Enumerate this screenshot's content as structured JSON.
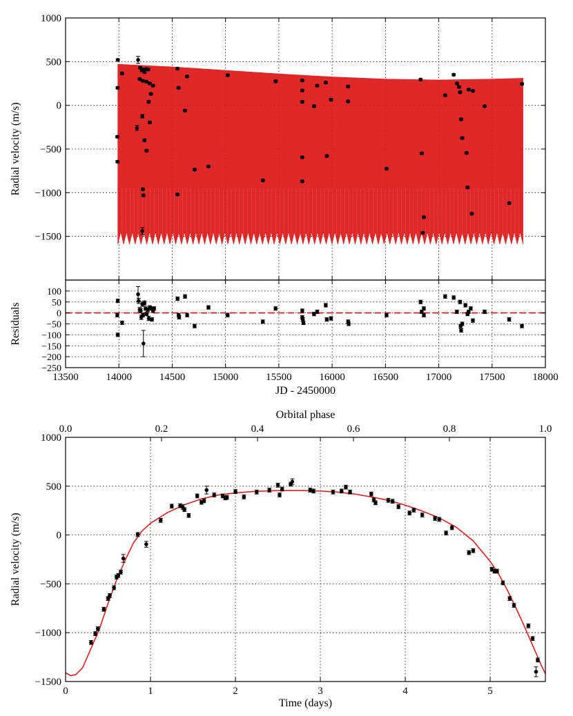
{
  "colors": {
    "model": "#dd1c1c",
    "data": "#000000",
    "zero_line": "#dd1c1c",
    "grid": "#000000"
  },
  "chart_data": [
    {
      "id": "rv_time_series",
      "type": "scatter",
      "ylabel": "Radial velocity (m/s)",
      "xlim": [
        13500,
        18000
      ],
      "ylim": [
        -2000,
        1000
      ],
      "xticks": [
        13500,
        14000,
        14500,
        15000,
        15500,
        16000,
        16500,
        17000,
        17500,
        18000
      ],
      "yticks": [
        1000,
        500,
        0,
        -500,
        -1000,
        -1500
      ],
      "ytick_labels": [
        "1000",
        "500",
        "0",
        "−500",
        "−1000",
        "−1500"
      ],
      "grid": true,
      "model": {
        "name": "orbital model envelope",
        "x_range": [
          13990,
          17790
        ],
        "upper": [
          [
            13990,
            470
          ],
          [
            14500,
            440
          ],
          [
            15000,
            400
          ],
          [
            15500,
            360
          ],
          [
            16000,
            325
          ],
          [
            16500,
            300
          ],
          [
            17000,
            290
          ],
          [
            17500,
            300
          ],
          [
            17790,
            310
          ]
        ],
        "lower_base": -1450,
        "lower_valley": -1590
      },
      "points": [
        [
          13990,
          520,
          12
        ],
        [
          13988,
          200,
          12
        ],
        [
          13985,
          -360,
          12
        ],
        [
          13987,
          -645,
          12
        ],
        [
          14030,
          365,
          12
        ],
        [
          14180,
          520,
          40
        ],
        [
          14200,
          430,
          12
        ],
        [
          14215,
          400,
          15
        ],
        [
          14225,
          280,
          12
        ],
        [
          14230,
          410,
          12
        ],
        [
          14240,
          380,
          12
        ],
        [
          14255,
          415,
          12
        ],
        [
          14260,
          270,
          12
        ],
        [
          14275,
          410,
          12
        ],
        [
          14290,
          250,
          12
        ],
        [
          14320,
          225,
          12
        ],
        [
          14300,
          130,
          12
        ],
        [
          14280,
          40,
          12
        ],
        [
          14290,
          -195,
          12
        ],
        [
          14195,
          300,
          12
        ],
        [
          14170,
          -260,
          30
        ],
        [
          14220,
          -125,
          20
        ],
        [
          14240,
          -400,
          12
        ],
        [
          14260,
          -520,
          12
        ],
        [
          14225,
          -960,
          12
        ],
        [
          14230,
          -1030,
          12
        ],
        [
          14220,
          -1440,
          40
        ],
        [
          14550,
          420,
          12
        ],
        [
          14560,
          200,
          12
        ],
        [
          14640,
          330,
          12
        ],
        [
          14620,
          -60,
          12
        ],
        [
          14710,
          -735,
          12
        ],
        [
          14550,
          -1020,
          12
        ],
        [
          14840,
          -700,
          12
        ],
        [
          15020,
          345,
          12
        ],
        [
          15350,
          -860,
          12
        ],
        [
          15470,
          275,
          12
        ],
        [
          15720,
          285,
          12
        ],
        [
          15720,
          170,
          12
        ],
        [
          15720,
          40,
          12
        ],
        [
          15720,
          -595,
          12
        ],
        [
          15720,
          -870,
          12
        ],
        [
          15830,
          -10,
          12
        ],
        [
          15860,
          225,
          12
        ],
        [
          15940,
          260,
          12
        ],
        [
          15990,
          65,
          12
        ],
        [
          15950,
          -580,
          12
        ],
        [
          16150,
          215,
          12
        ],
        [
          16150,
          45,
          12
        ],
        [
          16510,
          -725,
          12
        ],
        [
          16830,
          295,
          12
        ],
        [
          16840,
          -550,
          12
        ],
        [
          16860,
          -1280,
          12
        ],
        [
          16850,
          -1460,
          12
        ],
        [
          17060,
          115,
          12
        ],
        [
          17140,
          350,
          12
        ],
        [
          17170,
          250,
          12
        ],
        [
          17190,
          210,
          12
        ],
        [
          17200,
          150,
          12
        ],
        [
          17210,
          -160,
          12
        ],
        [
          17220,
          -375,
          12
        ],
        [
          17260,
          -545,
          12
        ],
        [
          17270,
          -940,
          12
        ],
        [
          17280,
          180,
          12
        ],
        [
          17320,
          165,
          12
        ],
        [
          17310,
          -1240,
          12
        ],
        [
          17430,
          -10,
          12
        ],
        [
          17660,
          -1120,
          12
        ],
        [
          17780,
          245,
          12
        ]
      ]
    },
    {
      "id": "residuals",
      "type": "scatter",
      "xlabel": "JD - 2450000",
      "ylabel": "Residuals",
      "xlim": [
        13500,
        18000
      ],
      "ylim": [
        -250,
        150
      ],
      "xticks": [
        13500,
        14000,
        14500,
        15000,
        15500,
        16000,
        16500,
        17000,
        17500,
        18000
      ],
      "xtick_labels": [
        "13500",
        "14000",
        "14500",
        "15000",
        "15500",
        "16000",
        "16500",
        "17000",
        "17500",
        "18000"
      ],
      "yticks": [
        100,
        50,
        0,
        -50,
        -100,
        -150,
        -200,
        -250
      ],
      "ytick_labels": [
        "100",
        "50",
        "0",
        "−50",
        "−100",
        "−150",
        "−200",
        "−250"
      ],
      "zero_line": 0,
      "points": [
        [
          13990,
          55,
          8
        ],
        [
          13985,
          -10,
          8
        ],
        [
          13990,
          -100,
          8
        ],
        [
          14030,
          -45,
          8
        ],
        [
          14180,
          85,
          35
        ],
        [
          14185,
          55,
          12
        ],
        [
          14195,
          15,
          10
        ],
        [
          14205,
          10,
          10
        ],
        [
          14210,
          -20,
          10
        ],
        [
          14220,
          40,
          10
        ],
        [
          14225,
          -10,
          8
        ],
        [
          14230,
          -140,
          60
        ],
        [
          14240,
          45,
          10
        ],
        [
          14250,
          20,
          8
        ],
        [
          14260,
          -5,
          8
        ],
        [
          14270,
          15,
          8
        ],
        [
          14280,
          -25,
          10
        ],
        [
          14290,
          25,
          8
        ],
        [
          14300,
          20,
          8
        ],
        [
          14310,
          -30,
          8
        ],
        [
          14320,
          10,
          8
        ],
        [
          14330,
          20,
          8
        ],
        [
          14550,
          65,
          8
        ],
        [
          14560,
          -10,
          8
        ],
        [
          14565,
          -20,
          8
        ],
        [
          14620,
          75,
          8
        ],
        [
          14640,
          -10,
          8
        ],
        [
          14710,
          -60,
          8
        ],
        [
          14840,
          25,
          8
        ],
        [
          15020,
          -10,
          8
        ],
        [
          15350,
          -40,
          8
        ],
        [
          15470,
          20,
          8
        ],
        [
          15720,
          10,
          8
        ],
        [
          15720,
          -20,
          8
        ],
        [
          15725,
          -30,
          8
        ],
        [
          15730,
          -45,
          8
        ],
        [
          15830,
          -5,
          8
        ],
        [
          15860,
          5,
          8
        ],
        [
          15940,
          35,
          8
        ],
        [
          15950,
          -30,
          8
        ],
        [
          15990,
          -25,
          8
        ],
        [
          16150,
          -40,
          8
        ],
        [
          16155,
          -50,
          8
        ],
        [
          16510,
          -10,
          8
        ],
        [
          16830,
          50,
          8
        ],
        [
          16840,
          5,
          8
        ],
        [
          16860,
          20,
          8
        ],
        [
          16860,
          -10,
          8
        ],
        [
          17060,
          75,
          8
        ],
        [
          17140,
          70,
          8
        ],
        [
          17170,
          5,
          8
        ],
        [
          17200,
          50,
          8
        ],
        [
          17205,
          -60,
          8
        ],
        [
          17210,
          -80,
          8
        ],
        [
          17220,
          -50,
          8
        ],
        [
          17250,
          35,
          8
        ],
        [
          17270,
          -5,
          8
        ],
        [
          17280,
          5,
          8
        ],
        [
          17300,
          20,
          8
        ],
        [
          17320,
          -35,
          8
        ],
        [
          17430,
          5,
          8
        ],
        [
          17660,
          -30,
          8
        ],
        [
          17780,
          -60,
          8
        ]
      ]
    },
    {
      "id": "phase_folded",
      "type": "scatter",
      "xlabel": "Time (days)",
      "ylabel": "Radial velocity (m/s)",
      "top_xlabel": "Orbital phase",
      "xlim": [
        0,
        5.65
      ],
      "ylim": [
        -1500,
        1000
      ],
      "xticks": [
        0,
        1,
        2,
        3,
        4,
        5
      ],
      "xtick_labels": [
        "0",
        "1",
        "2",
        "3",
        "4",
        "5"
      ],
      "top_xticks": [
        0.0,
        0.2,
        0.4,
        0.6,
        0.8,
        1.0
      ],
      "top_xtick_labels": [
        "0.0",
        "0.2",
        "0.4",
        "0.6",
        "0.8",
        "1.0"
      ],
      "yticks": [
        1000,
        500,
        0,
        -500,
        -1000,
        -1500
      ],
      "ytick_labels": [
        "1000",
        "500",
        "0",
        "−500",
        "−1000",
        "−1500"
      ],
      "grid": true,
      "model_curve": [
        [
          0.0,
          -1410
        ],
        [
          0.06,
          -1440
        ],
        [
          0.12,
          -1430
        ],
        [
          0.2,
          -1360
        ],
        [
          0.3,
          -1160
        ],
        [
          0.4,
          -960
        ],
        [
          0.5,
          -700
        ],
        [
          0.6,
          -460
        ],
        [
          0.7,
          -260
        ],
        [
          0.8,
          -80
        ],
        [
          0.9,
          40
        ],
        [
          1.0,
          120
        ],
        [
          1.2,
          230
        ],
        [
          1.4,
          310
        ],
        [
          1.6,
          370
        ],
        [
          1.8,
          410
        ],
        [
          2.0,
          430
        ],
        [
          2.2,
          445
        ],
        [
          2.5,
          455
        ],
        [
          2.8,
          455
        ],
        [
          3.0,
          450
        ],
        [
          3.2,
          440
        ],
        [
          3.4,
          420
        ],
        [
          3.6,
          390
        ],
        [
          3.8,
          355
        ],
        [
          4.0,
          305
        ],
        [
          4.2,
          245
        ],
        [
          4.4,
          175
        ],
        [
          4.6,
          80
        ],
        [
          4.8,
          -60
        ],
        [
          5.0,
          -270
        ],
        [
          5.1,
          -400
        ],
        [
          5.2,
          -560
        ],
        [
          5.3,
          -740
        ],
        [
          5.4,
          -930
        ],
        [
          5.5,
          -1130
        ],
        [
          5.6,
          -1330
        ],
        [
          5.65,
          -1420
        ]
      ],
      "points": [
        [
          0.3,
          -1100,
          20
        ],
        [
          0.35,
          -1010,
          20
        ],
        [
          0.38,
          -960,
          20
        ],
        [
          0.45,
          -760,
          20
        ],
        [
          0.5,
          -650,
          20
        ],
        [
          0.52,
          -620,
          20
        ],
        [
          0.57,
          -540,
          20
        ],
        [
          0.6,
          -430,
          20
        ],
        [
          0.62,
          -415,
          20
        ],
        [
          0.65,
          -380,
          20
        ],
        [
          0.68,
          -240,
          40
        ],
        [
          0.85,
          5,
          20
        ],
        [
          0.95,
          -95,
          30
        ],
        [
          1.12,
          150,
          20
        ],
        [
          1.25,
          295,
          20
        ],
        [
          1.35,
          300,
          20
        ],
        [
          1.38,
          285,
          25
        ],
        [
          1.4,
          260,
          20
        ],
        [
          1.45,
          200,
          20
        ],
        [
          1.55,
          400,
          20
        ],
        [
          1.6,
          335,
          20
        ],
        [
          1.63,
          350,
          20
        ],
        [
          1.66,
          460,
          40
        ],
        [
          1.75,
          410,
          20
        ],
        [
          1.85,
          400,
          20
        ],
        [
          1.88,
          380,
          20
        ],
        [
          1.9,
          385,
          20
        ],
        [
          2.0,
          445,
          20
        ],
        [
          2.1,
          390,
          20
        ],
        [
          2.25,
          440,
          20
        ],
        [
          2.4,
          460,
          20
        ],
        [
          2.5,
          510,
          20
        ],
        [
          2.52,
          410,
          20
        ],
        [
          2.55,
          470,
          20
        ],
        [
          2.65,
          520,
          20
        ],
        [
          2.67,
          545,
          30
        ],
        [
          2.88,
          460,
          20
        ],
        [
          2.92,
          450,
          20
        ],
        [
          3.15,
          440,
          20
        ],
        [
          3.25,
          450,
          20
        ],
        [
          3.3,
          490,
          20
        ],
        [
          3.35,
          440,
          20
        ],
        [
          3.6,
          420,
          20
        ],
        [
          3.63,
          360,
          20
        ],
        [
          3.65,
          330,
          20
        ],
        [
          3.8,
          355,
          20
        ],
        [
          3.85,
          345,
          20
        ],
        [
          3.92,
          290,
          20
        ],
        [
          4.05,
          225,
          20
        ],
        [
          4.1,
          255,
          20
        ],
        [
          4.2,
          205,
          20
        ],
        [
          4.35,
          170,
          20
        ],
        [
          4.4,
          160,
          20
        ],
        [
          4.48,
          20,
          20
        ],
        [
          4.55,
          75,
          20
        ],
        [
          4.75,
          -180,
          20
        ],
        [
          4.8,
          -160,
          20
        ],
        [
          5.02,
          -350,
          20
        ],
        [
          5.05,
          -370,
          20
        ],
        [
          5.08,
          -370,
          20
        ],
        [
          5.15,
          -490,
          20
        ],
        [
          5.23,
          -650,
          20
        ],
        [
          5.28,
          -720,
          20
        ],
        [
          5.45,
          -930,
          20
        ],
        [
          5.5,
          -1060,
          20
        ],
        [
          5.56,
          -1280,
          20
        ],
        [
          5.54,
          -1400,
          50
        ]
      ]
    }
  ]
}
